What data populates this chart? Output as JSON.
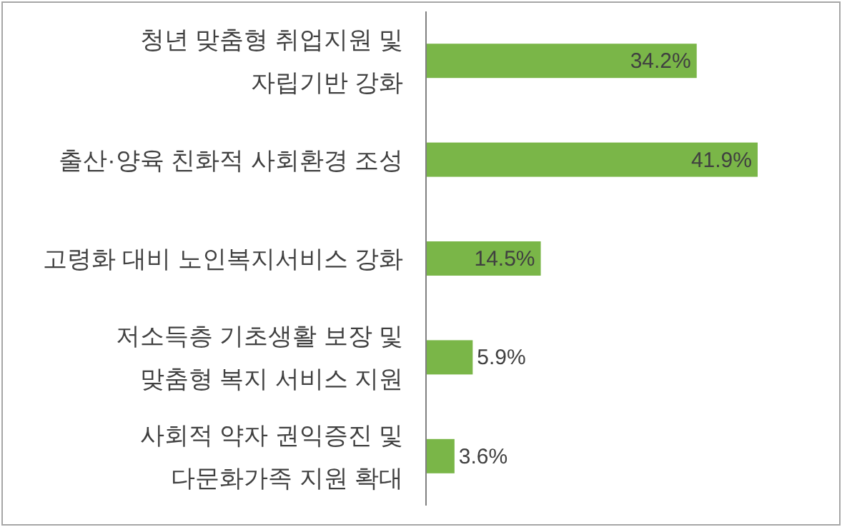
{
  "chart_data": {
    "type": "bar",
    "orientation": "horizontal",
    "categories": [
      "청년 맞춤형 취업지원 및\n자립기반 강화",
      "출산·양육 친화적 사회환경 조성",
      "고령화 대비 노인복지서비스 강화",
      "저소득층 기초생활 보장 및\n맞춤형 복지 서비스 지원",
      "사회적 약자 권익증진 및\n다문화가족 지원 확대"
    ],
    "values": [
      34.2,
      41.9,
      14.5,
      5.9,
      3.6
    ],
    "color": "#7ab648",
    "value_labels": [
      "34.2%",
      "41.9%",
      "14.5%",
      "5.9%",
      "3.6%"
    ]
  }
}
